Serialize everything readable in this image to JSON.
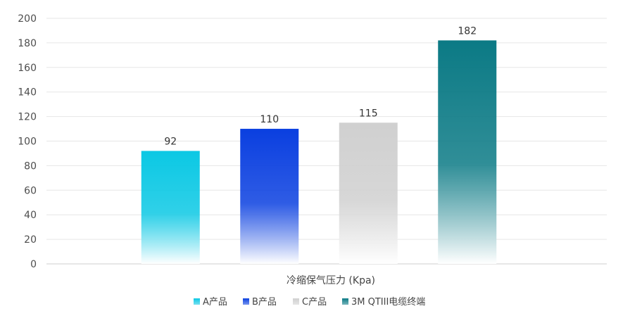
{
  "chart_data": {
    "type": "bar",
    "xlabel": "冷缩保气压力 (Kpa)",
    "ylabel": "",
    "ylim": [
      0,
      200
    ],
    "yticks": [
      0,
      20,
      40,
      60,
      80,
      100,
      120,
      140,
      160,
      180,
      200
    ],
    "grid": true,
    "legend_position": "bottom",
    "series": [
      {
        "name": "A产品",
        "value": 92,
        "color_top": "#0bc8e4",
        "color_bottom": "#ffffff"
      },
      {
        "name": "B产品",
        "value": 110,
        "color_top": "#0a3fe0",
        "color_bottom": "#ffffff"
      },
      {
        "name": "C产品",
        "value": 115,
        "color_top": "#d0d0d0",
        "color_bottom": "#ffffff"
      },
      {
        "name": "3M QTIII电缆终端",
        "value": 182,
        "color_top": "#0b7a85",
        "color_bottom": "#ffffff"
      }
    ]
  }
}
